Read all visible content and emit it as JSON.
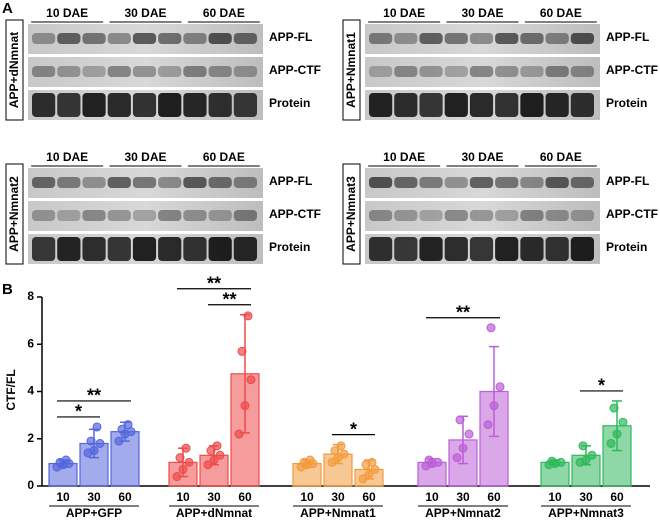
{
  "panel_a": {
    "letter": "A",
    "timepoints": [
      "10 DAE",
      "30 DAE",
      "60 DAE"
    ],
    "bands": [
      "APP-FL",
      "APP-CTF",
      "Protein"
    ],
    "blots": [
      {
        "genotype": "APP+dNmnat"
      },
      {
        "genotype": "APP+Nmnat1"
      },
      {
        "genotype": "APP+Nmnat2"
      },
      {
        "genotype": "APP+Nmnat3"
      }
    ]
  },
  "chart_data": {
    "type": "bar",
    "letter": "B",
    "y_label": "CTF/FL",
    "ylim": [
      0,
      8
    ],
    "yticks": [
      0,
      2,
      4,
      6,
      8
    ],
    "groups": [
      {
        "name": "APP+GFP",
        "color": "#5566dd",
        "categories": [
          "10",
          "30",
          "60"
        ],
        "values": [
          0.95,
          1.8,
          2.3
        ],
        "errors": [
          0.15,
          0.6,
          0.4
        ],
        "points": [
          [
            0.8,
            0.9,
            0.95,
            1.0,
            1.1
          ],
          [
            1.4,
            1.5,
            1.8,
            1.9,
            2.5
          ],
          [
            1.9,
            2.2,
            2.3,
            2.4,
            2.6
          ]
        ],
        "significance": [
          {
            "label": "*",
            "between": [
              "10",
              "30"
            ]
          },
          {
            "label": "**",
            "between": [
              "10",
              "60"
            ]
          }
        ]
      },
      {
        "name": "APP+dNmnat",
        "color": "#ee4b4b",
        "categories": [
          "10",
          "30",
          "60"
        ],
        "values": [
          1.0,
          1.3,
          4.75
        ],
        "errors": [
          0.6,
          0.4,
          2.5
        ],
        "points": [
          [
            0.4,
            0.7,
            1.0,
            1.2,
            1.6
          ],
          [
            0.9,
            1.1,
            1.3,
            1.5,
            1.7
          ],
          [
            2.2,
            3.4,
            4.5,
            5.7,
            7.2
          ]
        ],
        "significance": [
          {
            "label": "**",
            "between": [
              "30",
              "60"
            ]
          },
          {
            "label": "**",
            "between": [
              "10",
              "60"
            ]
          }
        ]
      },
      {
        "name": "APP+Nmnat1",
        "color": "#f39a3c",
        "categories": [
          "10",
          "30",
          "60"
        ],
        "values": [
          0.95,
          1.35,
          0.7
        ],
        "errors": [
          0.15,
          0.4,
          0.4
        ],
        "points": [
          [
            0.8,
            0.9,
            0.95,
            1.0,
            1.1
          ],
          [
            1.0,
            1.2,
            1.35,
            1.5,
            1.7
          ],
          [
            0.3,
            0.5,
            0.7,
            0.9,
            1.0
          ]
        ],
        "significance": [
          {
            "label": "*",
            "between": [
              "30",
              "60"
            ]
          }
        ]
      },
      {
        "name": "APP+Nmnat2",
        "color": "#bb5fd6",
        "categories": [
          "10",
          "30",
          "60"
        ],
        "values": [
          1.0,
          1.95,
          4.0
        ],
        "errors": [
          0.15,
          1.0,
          1.9
        ],
        "points": [
          [
            0.85,
            0.95,
            1.0,
            1.1
          ],
          [
            1.2,
            1.6,
            2.2,
            2.8
          ],
          [
            2.6,
            3.4,
            4.2,
            6.7
          ]
        ],
        "significance": [
          {
            "label": "**",
            "between": [
              "10",
              "60"
            ]
          }
        ]
      },
      {
        "name": "APP+Nmnat3",
        "color": "#2fb85c",
        "categories": [
          "10",
          "30",
          "60"
        ],
        "values": [
          1.0,
          1.3,
          2.55
        ],
        "errors": [
          0.1,
          0.4,
          1.05
        ],
        "points": [
          [
            0.9,
            0.95,
            1.0,
            1.05
          ],
          [
            1.0,
            1.1,
            1.3,
            1.7
          ],
          [
            1.8,
            2.2,
            2.7,
            3.3
          ]
        ],
        "significance": [
          {
            "label": "*",
            "between": [
              "30",
              "60"
            ]
          }
        ]
      }
    ]
  }
}
